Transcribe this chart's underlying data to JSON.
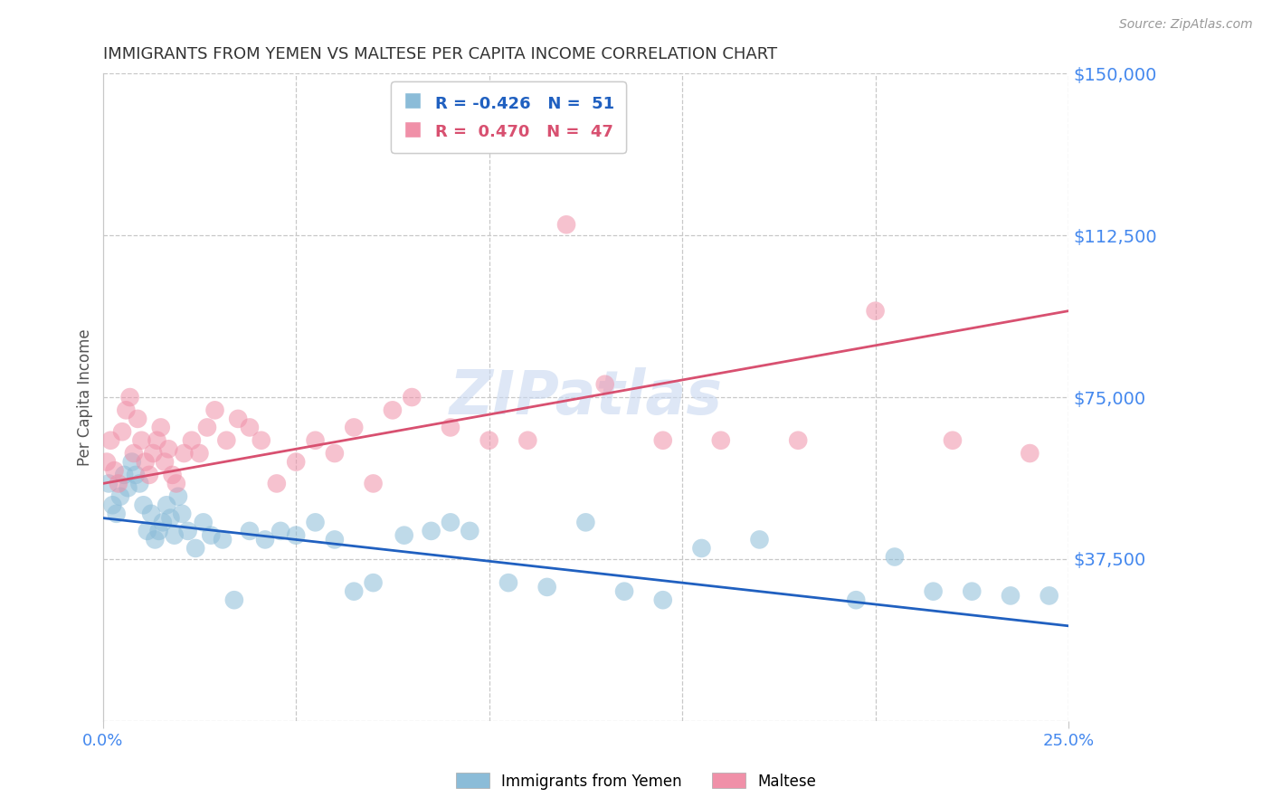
{
  "title": "IMMIGRANTS FROM YEMEN VS MALTESE PER CAPITA INCOME CORRELATION CHART",
  "source": "Source: ZipAtlas.com",
  "ylabel": "Per Capita Income",
  "xmin": 0.0,
  "xmax": 25.0,
  "ymin": 0,
  "ymax": 150000,
  "yticks": [
    0,
    37500,
    75000,
    112500,
    150000
  ],
  "ytick_labels": [
    "",
    "$37,500",
    "$75,000",
    "$112,500",
    "$150,000"
  ],
  "watermark": "ZIPatlas",
  "series_blue_label": "Immigrants from Yemen",
  "series_pink_label": "Maltese",
  "blue_color": "#8bbcd8",
  "pink_color": "#f090a8",
  "blue_line_color": "#2060c0",
  "pink_line_color": "#d85070",
  "blue_scatter_x": [
    0.15,
    0.25,
    0.35,
    0.45,
    0.55,
    0.65,
    0.75,
    0.85,
    0.95,
    1.05,
    1.15,
    1.25,
    1.35,
    1.45,
    1.55,
    1.65,
    1.75,
    1.85,
    1.95,
    2.05,
    2.2,
    2.4,
    2.6,
    2.8,
    3.1,
    3.4,
    3.8,
    4.2,
    4.6,
    5.0,
    5.5,
    6.0,
    6.5,
    7.0,
    7.8,
    8.5,
    9.0,
    9.5,
    10.5,
    11.5,
    12.5,
    13.5,
    14.5,
    15.5,
    17.0,
    19.5,
    20.5,
    21.5,
    22.5,
    23.5,
    24.5
  ],
  "blue_scatter_y": [
    55000,
    50000,
    48000,
    52000,
    57000,
    54000,
    60000,
    57000,
    55000,
    50000,
    44000,
    48000,
    42000,
    44000,
    46000,
    50000,
    47000,
    43000,
    52000,
    48000,
    44000,
    40000,
    46000,
    43000,
    42000,
    28000,
    44000,
    42000,
    44000,
    43000,
    46000,
    42000,
    30000,
    32000,
    43000,
    44000,
    46000,
    44000,
    32000,
    31000,
    46000,
    30000,
    28000,
    40000,
    42000,
    28000,
    38000,
    30000,
    30000,
    29000,
    29000
  ],
  "pink_scatter_x": [
    0.1,
    0.2,
    0.3,
    0.4,
    0.5,
    0.6,
    0.7,
    0.8,
    0.9,
    1.0,
    1.1,
    1.2,
    1.3,
    1.4,
    1.5,
    1.6,
    1.7,
    1.8,
    1.9,
    2.1,
    2.3,
    2.5,
    2.7,
    2.9,
    3.2,
    3.5,
    3.8,
    4.1,
    4.5,
    5.0,
    5.5,
    6.0,
    6.5,
    7.0,
    7.5,
    8.0,
    9.0,
    10.0,
    11.0,
    12.0,
    13.0,
    14.5,
    16.0,
    18.0,
    20.0,
    22.0,
    24.0
  ],
  "pink_scatter_y": [
    60000,
    65000,
    58000,
    55000,
    67000,
    72000,
    75000,
    62000,
    70000,
    65000,
    60000,
    57000,
    62000,
    65000,
    68000,
    60000,
    63000,
    57000,
    55000,
    62000,
    65000,
    62000,
    68000,
    72000,
    65000,
    70000,
    68000,
    65000,
    55000,
    60000,
    65000,
    62000,
    68000,
    55000,
    72000,
    75000,
    68000,
    65000,
    65000,
    115000,
    78000,
    65000,
    65000,
    65000,
    95000,
    65000,
    62000
  ],
  "blue_trend_x": [
    0.0,
    25.0
  ],
  "blue_trend_y": [
    47000,
    22000
  ],
  "pink_trend_x": [
    0.0,
    25.0
  ],
  "pink_trend_y": [
    55000,
    95000
  ],
  "background_color": "#ffffff",
  "grid_color": "#c8c8c8",
  "title_color": "#333333",
  "axis_label_color": "#555555",
  "tick_label_color": "#4488ee",
  "title_fontsize": 13,
  "watermark_fontsize": 48,
  "watermark_color": "#c8d8f0",
  "xtick_positions": [
    0,
    5,
    10,
    15,
    20,
    25
  ],
  "legend_blue_text": "R = -0.426   N =  51",
  "legend_pink_text": "R =  0.470   N =  47"
}
